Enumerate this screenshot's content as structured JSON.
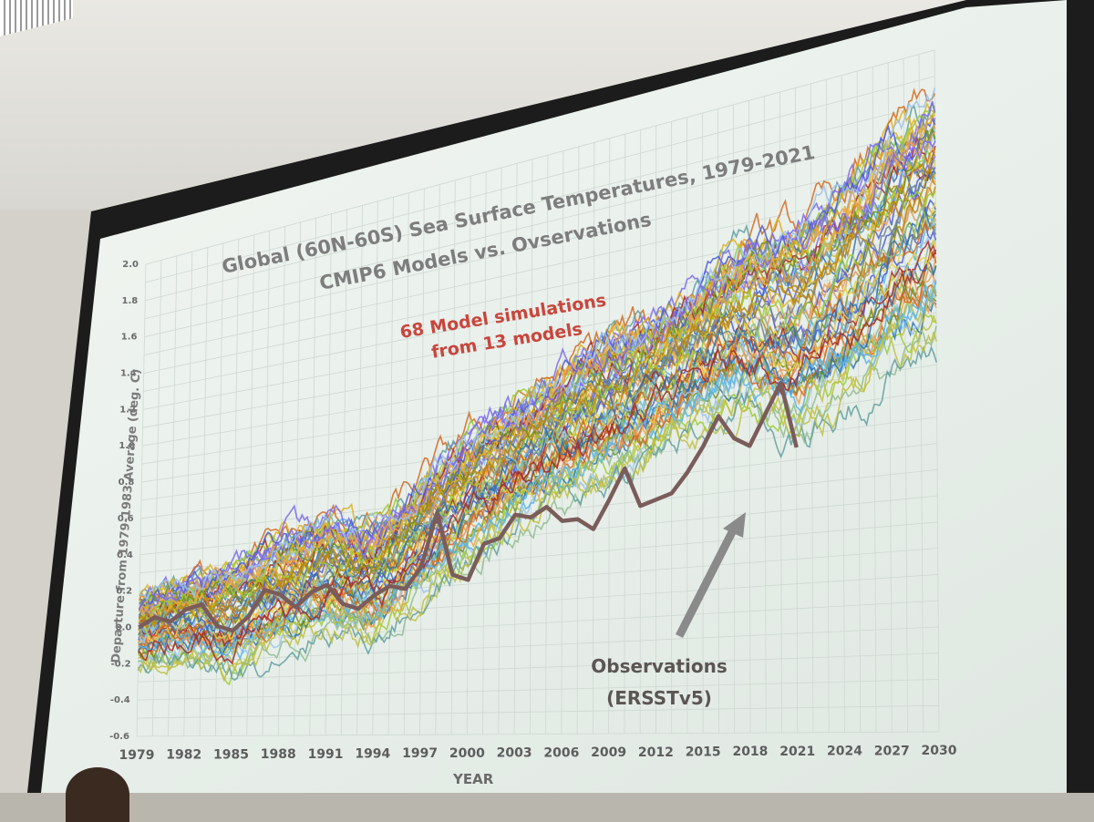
{
  "chart_data": {
    "type": "line",
    "title": "Global (60N-60S) Sea Surface Temperatures, 1979-2021",
    "subtitle": "CMIP6 Models vs. Ovservations",
    "xlabel": "YEAR",
    "ylabel": "Departure from 1979-1983 Average (deg. C)",
    "xlim": [
      1979,
      2030
    ],
    "ylim": [
      -0.6,
      2.0
    ],
    "x_ticks": [
      "1979",
      "1982",
      "1985",
      "1988",
      "1991",
      "1994",
      "1997",
      "2000",
      "2003",
      "2006",
      "2009",
      "2012",
      "2015",
      "2018",
      "2021",
      "2024",
      "2027",
      "2030"
    ],
    "y_ticks": [
      "-0.6",
      "-0.4",
      "-0.2",
      "0.0",
      "0.2",
      "0.4",
      "0.6",
      "0.8",
      "1.0",
      "1.2",
      "1.4",
      "1.6",
      "1.8",
      "2.0"
    ],
    "grid": true,
    "annotations": {
      "models": "68 Model simulations\nfrom 13 models",
      "observations": "Observations\n(ERSSTv5)"
    },
    "model_envelope": {
      "x": [
        1979,
        1982,
        1985,
        1988,
        1991,
        1994,
        1997,
        2000,
        2003,
        2006,
        2009,
        2012,
        2015,
        2018,
        2021,
        2024,
        2027,
        2030
      ],
      "upper": [
        0.25,
        0.35,
        0.45,
        0.55,
        0.6,
        0.55,
        0.75,
        0.95,
        1.05,
        1.15,
        1.3,
        1.3,
        1.45,
        1.6,
        1.65,
        1.75,
        1.95,
        2.05
      ],
      "lower": [
        -0.3,
        -0.3,
        -0.45,
        -0.3,
        -0.2,
        -0.25,
        -0.1,
        0.05,
        0.2,
        0.3,
        0.35,
        0.45,
        0.5,
        0.55,
        0.35,
        0.45,
        0.55,
        0.6
      ]
    },
    "model_colors": [
      "#4a5bd6",
      "#6b8e23",
      "#e0b020",
      "#f0a050",
      "#56b4e9",
      "#9acd32",
      "#7b68ee",
      "#c0c040",
      "#d2691e",
      "#2f6fb0",
      "#8fbc8f",
      "#b8860b",
      "#9bc3ea",
      "#a52a2a",
      "#708090",
      "#e6d040",
      "#5f9ea0",
      "#d89a60"
    ],
    "observations": {
      "name": "Observations (ERSSTv5)",
      "color": "#7a5c5a",
      "x": [
        1979,
        1980,
        1981,
        1982,
        1983,
        1984,
        1985,
        1986,
        1987,
        1988,
        1989,
        1990,
        1991,
        1992,
        1993,
        1994,
        1995,
        1996,
        1997,
        1998,
        1999,
        2000,
        2001,
        2002,
        2003,
        2004,
        2005,
        2006,
        2007,
        2008,
        2009,
        2010,
        2011,
        2012,
        2013,
        2014,
        2015,
        2016,
        2017,
        2018,
        2019,
        2020,
        2021
      ],
      "y": [
        0.0,
        0.05,
        0.02,
        0.08,
        0.1,
        -0.02,
        -0.05,
        0.02,
        0.15,
        0.12,
        0.05,
        0.12,
        0.15,
        0.05,
        0.02,
        0.08,
        0.12,
        0.1,
        0.2,
        0.45,
        0.15,
        0.12,
        0.28,
        0.3,
        0.4,
        0.38,
        0.42,
        0.35,
        0.35,
        0.3,
        0.42,
        0.55,
        0.38,
        0.4,
        0.42,
        0.5,
        0.6,
        0.72,
        0.62,
        0.58,
        0.7,
        0.82,
        0.55
      ]
    }
  }
}
